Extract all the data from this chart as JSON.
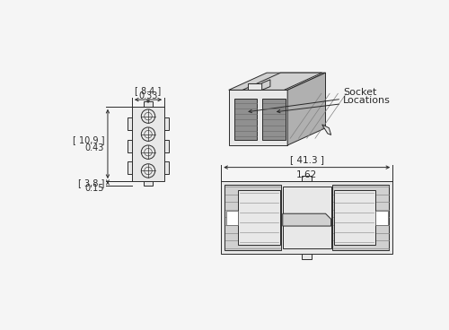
{
  "bg_color": "#f5f5f5",
  "line_color": "#2a2a2a",
  "fill_light": "#e8e8e8",
  "fill_mid": "#d0d0d0",
  "fill_dark": "#b0b0b0",
  "fill_darker": "#909090",
  "white": "#ffffff",
  "dim_8_4": "[ 8.4 ]",
  "dim_0_33": "0.33",
  "dim_10_9": "[ 10,9 ]",
  "dim_0_43": "0.43",
  "dim_3_8": "[ 3,8 ]",
  "dim_0_15": "0.15",
  "dim_41_3": "[ 41.3 ]",
  "dim_1_62": "1.62",
  "socket_label_1": "Socket",
  "socket_label_2": "Locations"
}
